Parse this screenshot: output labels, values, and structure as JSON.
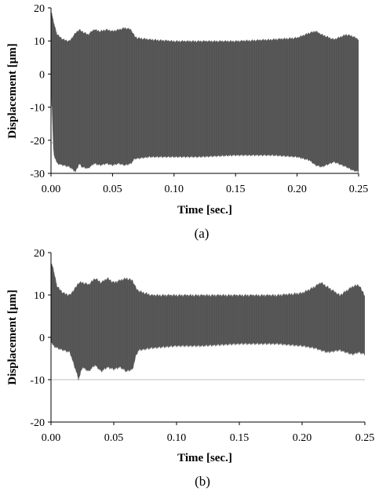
{
  "chart_data": [
    {
      "type": "area",
      "panel_label": "(a)",
      "xlabel": "Time [sec.]",
      "ylabel": "Displacement [μm]",
      "xlim": [
        0.0,
        0.25
      ],
      "ylim": [
        -30,
        20
      ],
      "x_ticks": [
        "0.00",
        "0.05",
        "0.10",
        "0.15",
        "0.20",
        "0.25"
      ],
      "y_ticks": [
        "20",
        "10",
        "0",
        "-10",
        "-20",
        "-30"
      ],
      "grid": "horizontal line at -10 only",
      "envelope": {
        "x": [
          0.0,
          0.002,
          0.005,
          0.01,
          0.015,
          0.02,
          0.023,
          0.025,
          0.03,
          0.035,
          0.04,
          0.045,
          0.05,
          0.055,
          0.06,
          0.065,
          0.068,
          0.07,
          0.08,
          0.1,
          0.12,
          0.15,
          0.18,
          0.2,
          0.21,
          0.215,
          0.22,
          0.23,
          0.24,
          0.245,
          0.25
        ],
        "upper": [
          19.5,
          16,
          12,
          10.5,
          10,
          12.5,
          13.5,
          13,
          12,
          13.5,
          13,
          13.5,
          13,
          13.5,
          14,
          13.5,
          11.5,
          11,
          10.5,
          10,
          10,
          10,
          10.5,
          11,
          12.5,
          13,
          12,
          10.5,
          12,
          11.5,
          10.5
        ],
        "lower": [
          -3,
          -24,
          -27,
          -27.5,
          -28,
          -29.5,
          -27,
          -28,
          -28.5,
          -27,
          -27.5,
          -27,
          -27.5,
          -27,
          -27.5,
          -27,
          -25.5,
          -25.5,
          -25,
          -25,
          -25,
          -24.5,
          -24.5,
          -25,
          -26,
          -27.5,
          -28,
          -26.5,
          -28,
          -29,
          -29.5
        ]
      }
    },
    {
      "type": "area",
      "panel_label": "(b)",
      "xlabel": "Time [sec.]",
      "ylabel": "Displacement [μm]",
      "xlim": [
        0.0,
        0.25
      ],
      "ylim": [
        -20,
        20
      ],
      "x_ticks": [
        "0.00",
        "0.05",
        "0.10",
        "0.15",
        "0.20",
        "0.25"
      ],
      "y_ticks": [
        "20",
        "10",
        "0",
        "-10",
        "-20"
      ],
      "grid": "horizontal line at -10 only",
      "envelope": {
        "x": [
          0.0,
          0.002,
          0.005,
          0.01,
          0.015,
          0.02,
          0.022,
          0.025,
          0.03,
          0.035,
          0.04,
          0.045,
          0.05,
          0.055,
          0.06,
          0.065,
          0.068,
          0.07,
          0.08,
          0.1,
          0.12,
          0.15,
          0.18,
          0.2,
          0.21,
          0.215,
          0.22,
          0.23,
          0.24,
          0.245,
          0.25
        ],
        "upper": [
          18,
          16,
          12,
          10.5,
          10,
          12,
          13,
          13,
          12.5,
          14,
          13,
          14,
          13,
          13.5,
          14,
          13.5,
          11.5,
          11,
          10,
          10,
          10,
          10,
          10,
          10.5,
          12,
          13,
          12,
          10,
          12,
          12.5,
          10
        ],
        "lower": [
          -1,
          -2,
          -2.5,
          -3,
          -3.5,
          -8,
          -10,
          -7,
          -8,
          -6.5,
          -8,
          -7,
          -7.5,
          -7,
          -8,
          -7.5,
          -4,
          -3,
          -2.5,
          -2,
          -2,
          -1.5,
          -1.5,
          -2,
          -2.5,
          -3,
          -3.5,
          -3,
          -4,
          -3.5,
          -4
        ]
      }
    }
  ]
}
